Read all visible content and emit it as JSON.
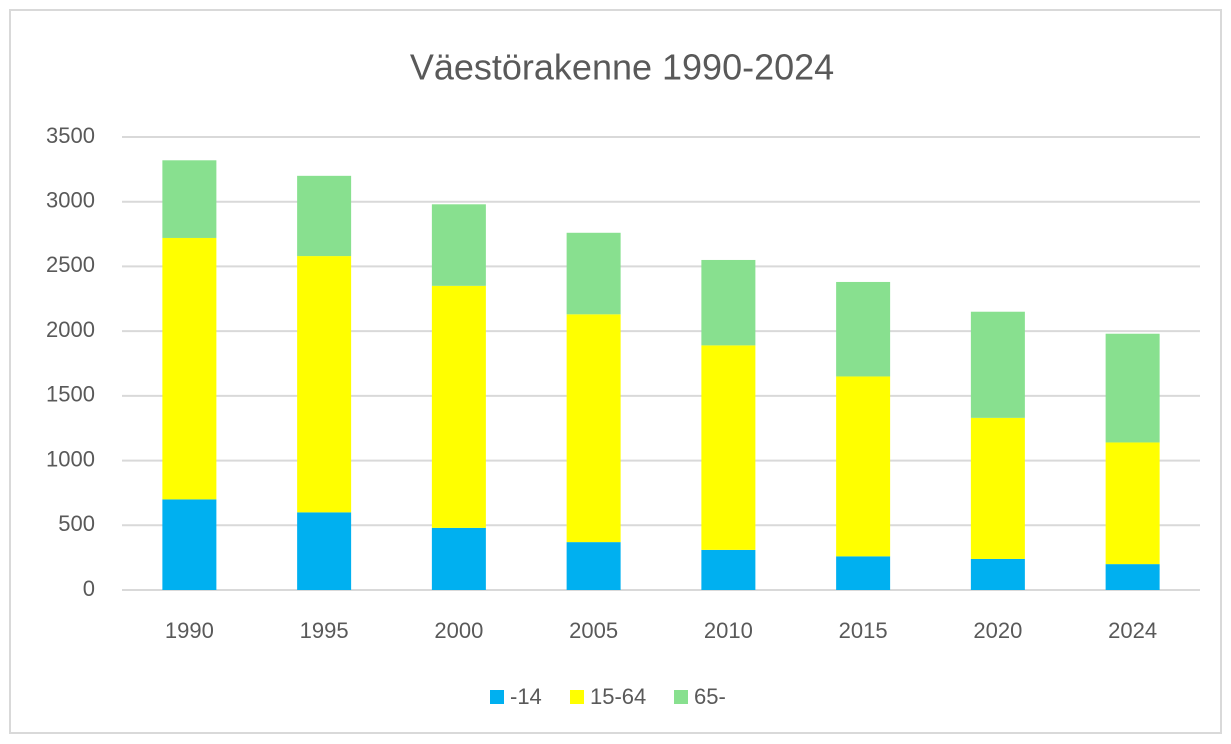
{
  "chart_data": {
    "type": "stacked_bar",
    "title": "Väestörakenne 1990-2024",
    "categories": [
      "1990",
      "1995",
      "2000",
      "2005",
      "2010",
      "2015",
      "2020",
      "2024"
    ],
    "series": [
      {
        "name": "-14",
        "color": "#00b0f0",
        "values": [
          700,
          600,
          480,
          370,
          310,
          260,
          240,
          200
        ]
      },
      {
        "name": "15-64",
        "color": "#ffff00",
        "values": [
          2020,
          1980,
          1870,
          1760,
          1580,
          1390,
          1090,
          940
        ]
      },
      {
        "name": "65-",
        "color": "#88e08f",
        "values": [
          600,
          620,
          630,
          630,
          660,
          730,
          820,
          840
        ]
      }
    ],
    "ylim": [
      0,
      3500
    ],
    "yticks": [
      0,
      500,
      1000,
      1500,
      2000,
      2500,
      3000,
      3500
    ],
    "grid": true,
    "legend": "bottom"
  }
}
